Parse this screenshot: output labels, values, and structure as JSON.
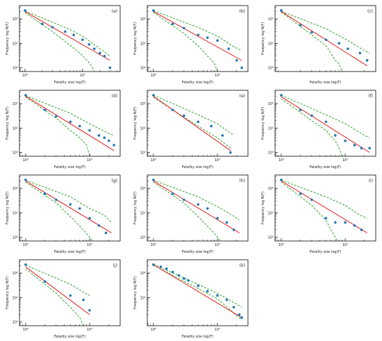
{
  "figure": {
    "xlabel": "Fatality size log(F)",
    "ylabel": "Frequency log N(F)"
  },
  "chart_data": [
    {
      "type": "scatter",
      "panel": "(a)",
      "x_scale": "log",
      "y_scale": "log",
      "xlim": [
        0.8,
        45
      ],
      "ylim": [
        0.7,
        350
      ],
      "x_ticks": [
        {
          "v": 1,
          "label": "10⁰"
        },
        {
          "v": 10,
          "label": "10¹"
        }
      ],
      "y_ticks": [
        {
          "v": 1,
          "label": "10⁰"
        },
        {
          "v": 10,
          "label": "10¹"
        },
        {
          "v": 100,
          "label": "10²"
        }
      ],
      "points": [
        [
          1,
          220
        ],
        [
          2,
          62
        ],
        [
          3,
          45
        ],
        [
          5,
          30
        ],
        [
          7,
          22
        ],
        [
          10,
          14
        ],
        [
          13,
          9
        ],
        [
          16,
          6
        ],
        [
          20,
          4
        ],
        [
          24,
          3
        ],
        [
          30,
          1
        ]
      ],
      "fit": [
        [
          1,
          200
        ],
        [
          30,
          2
        ]
      ],
      "ci_upper": [
        [
          1,
          210
        ],
        [
          5,
          45
        ],
        [
          10,
          20
        ],
        [
          20,
          6
        ],
        [
          30,
          3
        ]
      ],
      "ci_lower": [
        [
          1,
          180
        ],
        [
          3,
          30
        ],
        [
          5,
          12
        ],
        [
          9,
          4
        ],
        [
          12,
          2
        ],
        [
          15,
          1
        ],
        [
          16,
          0.7
        ]
      ]
    },
    {
      "type": "scatter",
      "panel": "(b)",
      "x_scale": "log",
      "y_scale": "log",
      "xlim": [
        0.8,
        30
      ],
      "ylim": [
        0.7,
        350
      ],
      "x_ticks": [
        {
          "v": 1,
          "label": "10⁰"
        },
        {
          "v": 10,
          "label": "10¹"
        }
      ],
      "y_ticks": [
        {
          "v": 1,
          "label": "10⁰"
        },
        {
          "v": 10,
          "label": "10¹"
        },
        {
          "v": 100,
          "label": "10²"
        }
      ],
      "points": [
        [
          1,
          220
        ],
        [
          2,
          62
        ],
        [
          3,
          42
        ],
        [
          5,
          22
        ],
        [
          7,
          17
        ],
        [
          10,
          13
        ],
        [
          15,
          6
        ],
        [
          20,
          2
        ],
        [
          24,
          1
        ]
      ],
      "fit": [
        [
          1,
          200
        ],
        [
          24,
          2
        ]
      ],
      "ci_upper": [
        [
          1,
          215
        ],
        [
          5,
          45
        ],
        [
          10,
          20
        ],
        [
          17,
          8
        ],
        [
          24,
          5
        ]
      ],
      "ci_lower": [
        [
          1,
          185
        ],
        [
          3,
          25
        ],
        [
          5,
          8
        ],
        [
          7,
          3
        ],
        [
          9,
          1.5
        ],
        [
          10,
          0.7
        ]
      ]
    },
    {
      "type": "scatter",
      "panel": "(c)",
      "x_scale": "log",
      "y_scale": "log",
      "xlim": [
        0.8,
        30
      ],
      "ylim": [
        0.7,
        350
      ],
      "x_ticks": [],
      "y_ticks": [
        {
          "v": 1,
          "label": "10⁰"
        },
        {
          "v": 10,
          "label": "10¹"
        },
        {
          "v": 100,
          "label": "10²"
        }
      ],
      "points": [
        [
          1,
          220
        ],
        [
          2,
          55
        ],
        [
          3,
          28
        ],
        [
          5,
          14
        ],
        [
          8,
          10
        ],
        [
          11,
          6
        ],
        [
          17,
          4
        ],
        [
          22,
          2
        ]
      ],
      "fit": [
        [
          1,
          200
        ],
        [
          22,
          1.2
        ]
      ],
      "ci_upper": [
        [
          1,
          205
        ],
        [
          5,
          40
        ],
        [
          10,
          15
        ],
        [
          20,
          5
        ],
        [
          24,
          4
        ]
      ],
      "ci_lower": [
        [
          1,
          190
        ],
        [
          3,
          22
        ],
        [
          5,
          8
        ],
        [
          7,
          2
        ],
        [
          8,
          1.5
        ],
        [
          9,
          0.7
        ]
      ]
    },
    {
      "type": "scatter",
      "panel": "(d)",
      "x_scale": "log",
      "y_scale": "log",
      "xlim": [
        0.8,
        30
      ],
      "ylim": [
        0.7,
        350
      ],
      "x_ticks": [
        {
          "v": 1,
          "label": "10⁰"
        },
        {
          "v": 10,
          "label": "10¹"
        }
      ],
      "y_ticks": [
        {
          "v": 1,
          "label": "10⁰"
        },
        {
          "v": 10,
          "label": "10¹"
        },
        {
          "v": 100,
          "label": "10²"
        }
      ],
      "points": [
        [
          1,
          220
        ],
        [
          2,
          55
        ],
        [
          3,
          30
        ],
        [
          5,
          18
        ],
        [
          7,
          12
        ],
        [
          10,
          8
        ],
        [
          14,
          5
        ],
        [
          17,
          4
        ],
        [
          20,
          3
        ],
        [
          24,
          2
        ]
      ],
      "fit": [
        [
          1,
          200
        ],
        [
          24,
          1.2
        ]
      ],
      "ci_upper": [
        [
          1,
          210
        ],
        [
          5,
          40
        ],
        [
          10,
          15
        ],
        [
          20,
          6
        ],
        [
          24,
          5
        ]
      ],
      "ci_lower": [
        [
          1,
          185
        ],
        [
          3,
          25
        ],
        [
          5,
          8
        ],
        [
          7,
          4
        ],
        [
          9,
          2
        ],
        [
          10,
          0.7
        ]
      ]
    },
    {
      "type": "scatter",
      "panel": "(e)",
      "x_scale": "log",
      "y_scale": "log",
      "xlim": [
        0.8,
        30
      ],
      "ylim": [
        0.7,
        350
      ],
      "x_ticks": [
        {
          "v": 1,
          "label": "10⁰"
        },
        {
          "v": 10,
          "label": "10¹"
        }
      ],
      "y_ticks": [
        {
          "v": 1,
          "label": "10⁰"
        },
        {
          "v": 10,
          "label": "10¹"
        },
        {
          "v": 100,
          "label": "10²"
        }
      ],
      "points": [
        [
          1,
          220
        ],
        [
          2,
          55
        ],
        [
          3,
          32
        ],
        [
          5,
          18
        ],
        [
          8,
          12
        ],
        [
          12,
          5
        ],
        [
          16,
          1
        ]
      ],
      "fit": [
        [
          1,
          200
        ],
        [
          16,
          1.2
        ]
      ],
      "ci_upper": [
        [
          1,
          220
        ],
        [
          5,
          35
        ],
        [
          10,
          15
        ],
        [
          18,
          5
        ]
      ],
      "ci_lower": [
        [
          1,
          180
        ],
        [
          3,
          28
        ],
        [
          5,
          12
        ],
        [
          10,
          4
        ],
        [
          16,
          1.5
        ]
      ]
    },
    {
      "type": "scatter",
      "panel": "(f)",
      "x_scale": "log",
      "y_scale": "log",
      "xlim": [
        0.8,
        30
      ],
      "ylim": [
        0.7,
        350
      ],
      "x_ticks": [
        {
          "v": 1,
          "label": "10⁰"
        },
        {
          "v": 10,
          "label": "10¹"
        }
      ],
      "y_ticks": [
        {
          "v": 1,
          "label": "10⁰"
        },
        {
          "v": 10,
          "label": "10¹"
        },
        {
          "v": 100,
          "label": "10²"
        }
      ],
      "points": [
        [
          1,
          220
        ],
        [
          2,
          55
        ],
        [
          3,
          32
        ],
        [
          5,
          18
        ],
        [
          7,
          5
        ],
        [
          10,
          3
        ],
        [
          14,
          2
        ],
        [
          18,
          1.5
        ],
        [
          24,
          1.5
        ]
      ],
      "fit": [
        [
          1,
          190
        ],
        [
          24,
          1
        ]
      ],
      "ci_upper": [
        [
          1,
          220
        ],
        [
          5,
          35
        ],
        [
          10,
          15
        ],
        [
          20,
          5
        ],
        [
          24,
          4
        ]
      ],
      "ci_lower": [
        [
          1,
          160
        ],
        [
          3,
          20
        ],
        [
          5,
          8
        ],
        [
          7,
          3
        ],
        [
          8,
          1.5
        ],
        [
          9,
          0.7
        ]
      ]
    },
    {
      "type": "scatter",
      "panel": "(g)",
      "x_scale": "log",
      "y_scale": "log",
      "xlim": [
        0.8,
        30
      ],
      "ylim": [
        0.7,
        350
      ],
      "x_ticks": [
        {
          "v": 1,
          "label": "10⁰"
        },
        {
          "v": 10,
          "label": "10¹"
        }
      ],
      "y_ticks": [
        {
          "v": 1,
          "label": "10⁰"
        },
        {
          "v": 10,
          "label": "10¹"
        },
        {
          "v": 100,
          "label": "10²"
        }
      ],
      "points": [
        [
          1,
          220
        ],
        [
          2,
          60
        ],
        [
          3,
          34
        ],
        [
          5,
          22
        ],
        [
          7,
          15
        ],
        [
          10,
          6
        ],
        [
          14,
          3
        ],
        [
          18,
          1.5
        ]
      ],
      "fit": [
        [
          1,
          200
        ],
        [
          22,
          1.5
        ]
      ],
      "ci_upper": [
        [
          1,
          215
        ],
        [
          5,
          45
        ],
        [
          10,
          15
        ],
        [
          17,
          8
        ],
        [
          22,
          4
        ]
      ],
      "ci_lower": [
        [
          1,
          180
        ],
        [
          3,
          25
        ],
        [
          5,
          7
        ],
        [
          8,
          2
        ],
        [
          10,
          1
        ],
        [
          11,
          0.7
        ]
      ]
    },
    {
      "type": "scatter",
      "panel": "(h)",
      "x_scale": "log",
      "y_scale": "log",
      "xlim": [
        0.8,
        30
      ],
      "ylim": [
        0.7,
        350
      ],
      "x_ticks": [
        {
          "v": 1,
          "label": "10⁰"
        },
        {
          "v": 10,
          "label": "10¹"
        }
      ],
      "y_ticks": [
        {
          "v": 1,
          "label": "10⁰"
        },
        {
          "v": 10,
          "label": "10¹"
        },
        {
          "v": 100,
          "label": "10²"
        }
      ],
      "points": [
        [
          1,
          220
        ],
        [
          2,
          60
        ],
        [
          3,
          34
        ],
        [
          5,
          22
        ],
        [
          7,
          15
        ],
        [
          10,
          6
        ],
        [
          14,
          4
        ],
        [
          18,
          2
        ]
      ],
      "fit": [
        [
          1,
          200
        ],
        [
          22,
          1.5
        ]
      ],
      "ci_upper": [
        [
          1,
          215
        ],
        [
          5,
          45
        ],
        [
          10,
          18
        ],
        [
          17,
          8
        ],
        [
          22,
          5
        ]
      ],
      "ci_lower": [
        [
          1,
          180
        ],
        [
          3,
          25
        ],
        [
          5,
          7
        ],
        [
          8,
          2
        ],
        [
          10,
          1
        ],
        [
          11,
          0.7
        ]
      ]
    },
    {
      "type": "scatter",
      "panel": "(i)",
      "x_scale": "log",
      "y_scale": "log",
      "xlim": [
        0.8,
        30
      ],
      "ylim": [
        0.7,
        350
      ],
      "x_ticks": [
        {
          "v": 1,
          "label": "10⁰"
        },
        {
          "v": 10,
          "label": "10¹"
        }
      ],
      "y_ticks": [
        {
          "v": 1,
          "label": "10⁰"
        },
        {
          "v": 10,
          "label": "10¹"
        },
        {
          "v": 100,
          "label": "10²"
        }
      ],
      "points": [
        [
          1,
          220
        ],
        [
          2,
          60
        ],
        [
          3,
          34
        ],
        [
          5,
          6
        ],
        [
          7,
          4
        ],
        [
          10,
          4
        ],
        [
          14,
          3
        ],
        [
          18,
          2
        ]
      ],
      "fit": [
        [
          1,
          200
        ],
        [
          22,
          1.5
        ]
      ],
      "ci_upper": [
        [
          1,
          215
        ],
        [
          5,
          45
        ],
        [
          10,
          20
        ],
        [
          17,
          8
        ],
        [
          22,
          6
        ]
      ],
      "ci_lower": [
        [
          1,
          180
        ],
        [
          3,
          20
        ],
        [
          5,
          5
        ],
        [
          6,
          2
        ],
        [
          7,
          1
        ],
        [
          7.5,
          0.7
        ]
      ]
    },
    {
      "type": "scatter",
      "panel": "(j)",
      "x_scale": "log",
      "y_scale": "log",
      "xlim": [
        0.8,
        30
      ],
      "ylim": [
        0.7,
        350
      ],
      "x_ticks": [
        {
          "v": 1,
          "label": "10⁰"
        },
        {
          "v": 10,
          "label": "10¹"
        }
      ],
      "y_ticks": [
        {
          "v": 1,
          "label": "10⁰"
        },
        {
          "v": 10,
          "label": "10¹"
        },
        {
          "v": 100,
          "label": "10²"
        }
      ],
      "points": [
        [
          1,
          220
        ],
        [
          2,
          45
        ],
        [
          5,
          12
        ],
        [
          8,
          8
        ],
        [
          10,
          3
        ]
      ],
      "fit": [
        [
          1,
          180
        ],
        [
          10,
          2
        ]
      ],
      "ci_upper": [
        [
          1,
          210
        ],
        [
          5,
          35
        ],
        [
          10,
          12
        ]
      ],
      "ci_lower": [
        [
          1,
          150
        ],
        [
          3,
          15
        ],
        [
          5,
          4
        ],
        [
          7,
          1.5
        ],
        [
          8,
          0.7
        ]
      ]
    },
    {
      "type": "scatter",
      "panel": "(k)",
      "x_scale": "log",
      "y_scale": "log",
      "xlim": [
        0.8,
        30
      ],
      "ylim": [
        0.7,
        350
      ],
      "x_ticks": [
        {
          "v": 1,
          "label": "10⁰"
        },
        {
          "v": 10,
          "label": "10¹"
        }
      ],
      "y_ticks": [
        {
          "v": 10,
          "label": "10¹"
        },
        {
          "v": 100,
          "label": "10²"
        }
      ],
      "points": [
        [
          1,
          220
        ],
        [
          1.3,
          180
        ],
        [
          1.6,
          150
        ],
        [
          2,
          110
        ],
        [
          2.5,
          80
        ],
        [
          3,
          60
        ],
        [
          3.5,
          50
        ],
        [
          5,
          30
        ],
        [
          7,
          18
        ],
        [
          10,
          12
        ],
        [
          14,
          8
        ],
        [
          18,
          4
        ],
        [
          22,
          2
        ],
        [
          24,
          1.5
        ]
      ],
      "fit": [
        [
          1,
          220
        ],
        [
          24,
          1.5
        ]
      ],
      "ci_upper": [
        [
          1,
          230
        ],
        [
          10,
          15
        ],
        [
          24,
          4
        ]
      ],
      "ci_lower": [
        [
          1,
          210
        ],
        [
          10,
          9
        ],
        [
          24,
          1.2
        ]
      ]
    }
  ]
}
